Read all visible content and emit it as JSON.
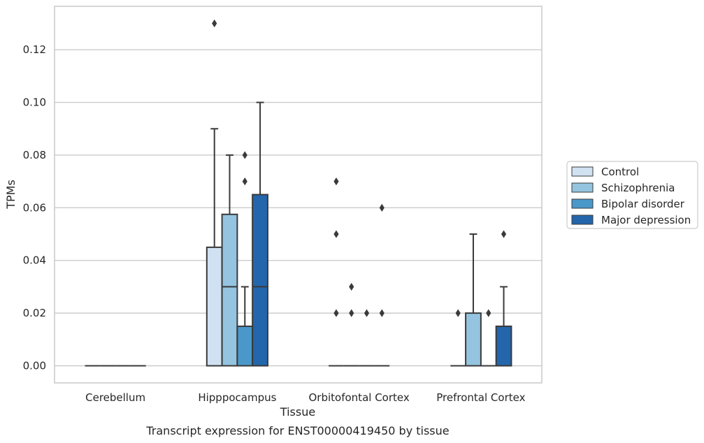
{
  "colors": {
    "control": "#d0e1f2",
    "schizophrenia": "#94c4df",
    "bipolar": "#4a98c9",
    "depression": "#2366ab",
    "edge": "#3a3a3a",
    "grid": "#cccccc",
    "text": "#262626"
  },
  "chart_data": {
    "type": "box",
    "title": "Transcript expression for ENST00000419450 by tissue",
    "xlabel": "Tissue",
    "ylabel": "TPMs",
    "ylim": [
      -0.0065,
      0.1365
    ],
    "yticks": [
      0.0,
      0.02,
      0.04,
      0.06,
      0.08,
      0.1,
      0.12
    ],
    "ytick_labels": [
      "0.00",
      "0.02",
      "0.04",
      "0.06",
      "0.08",
      "0.10",
      "0.12"
    ],
    "grid": "horizontal",
    "legend_position": "right",
    "categories": [
      "Cerebellum",
      "Hipppocampus",
      "Orbitofontal Cortex",
      "Prefrontal Cortex"
    ],
    "series": [
      {
        "name": "Control",
        "color_key": "control",
        "boxes": [
          {
            "q1": 0,
            "median": 0,
            "q3": 0,
            "whisker_low": 0,
            "whisker_high": 0,
            "outliers": []
          },
          {
            "q1": 0,
            "median": 0,
            "q3": 0.045,
            "whisker_low": 0,
            "whisker_high": 0.09,
            "outliers": [
              0.13
            ]
          },
          {
            "q1": 0,
            "median": 0,
            "q3": 0,
            "whisker_low": 0,
            "whisker_high": 0,
            "outliers": [
              0.02,
              0.05,
              0.07
            ]
          },
          {
            "q1": 0,
            "median": 0,
            "q3": 0,
            "whisker_low": 0,
            "whisker_high": 0,
            "outliers": [
              0.02
            ]
          }
        ]
      },
      {
        "name": "Schizophrenia",
        "color_key": "schizophrenia",
        "boxes": [
          {
            "q1": 0,
            "median": 0,
            "q3": 0,
            "whisker_low": 0,
            "whisker_high": 0,
            "outliers": []
          },
          {
            "q1": 0,
            "median": 0.03,
            "q3": 0.0575,
            "whisker_low": 0,
            "whisker_high": 0.08,
            "outliers": []
          },
          {
            "q1": 0,
            "median": 0,
            "q3": 0,
            "whisker_low": 0,
            "whisker_high": 0,
            "outliers": [
              0.02,
              0.03
            ]
          },
          {
            "q1": 0,
            "median": 0,
            "q3": 0.02,
            "whisker_low": 0,
            "whisker_high": 0.05,
            "outliers": []
          }
        ]
      },
      {
        "name": "Bipolar disorder",
        "color_key": "bipolar",
        "boxes": [
          {
            "q1": 0,
            "median": 0,
            "q3": 0,
            "whisker_low": 0,
            "whisker_high": 0,
            "outliers": []
          },
          {
            "q1": 0,
            "median": 0,
            "q3": 0.015,
            "whisker_low": 0,
            "whisker_high": 0.03,
            "outliers": [
              0.07,
              0.08
            ]
          },
          {
            "q1": 0,
            "median": 0,
            "q3": 0,
            "whisker_low": 0,
            "whisker_high": 0,
            "outliers": [
              0.02
            ]
          },
          {
            "q1": 0,
            "median": 0,
            "q3": 0,
            "whisker_low": 0,
            "whisker_high": 0,
            "outliers": [
              0.02
            ]
          }
        ]
      },
      {
        "name": "Major depression",
        "color_key": "depression",
        "boxes": [
          {
            "q1": 0,
            "median": 0,
            "q3": 0,
            "whisker_low": 0,
            "whisker_high": 0,
            "outliers": []
          },
          {
            "q1": 0,
            "median": 0.03,
            "q3": 0.065,
            "whisker_low": 0,
            "whisker_high": 0.1,
            "outliers": []
          },
          {
            "q1": 0,
            "median": 0,
            "q3": 0,
            "whisker_low": 0,
            "whisker_high": 0,
            "outliers": [
              0.02,
              0.06
            ]
          },
          {
            "q1": 0,
            "median": 0,
            "q3": 0.015,
            "whisker_low": 0,
            "whisker_high": 0.03,
            "outliers": [
              0.05
            ]
          }
        ]
      }
    ]
  }
}
